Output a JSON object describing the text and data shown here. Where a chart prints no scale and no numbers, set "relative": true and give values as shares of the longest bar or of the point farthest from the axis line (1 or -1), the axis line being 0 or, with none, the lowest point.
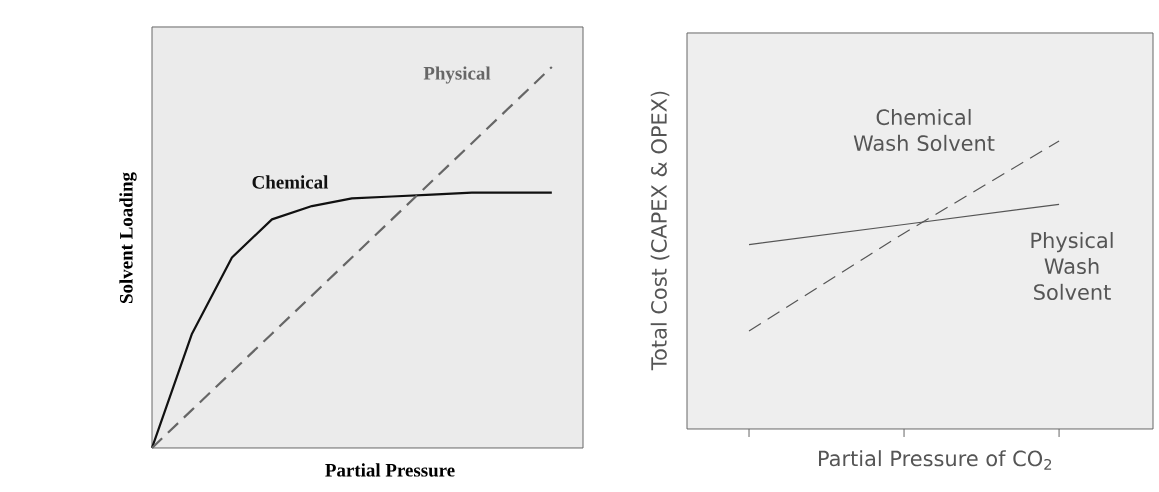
{
  "chart_data": [
    {
      "type": "line",
      "relative": true,
      "xlabel": "Partial Pressure",
      "ylabel": "Solvent Loading",
      "categories": [
        null,
        null,
        null,
        null,
        null,
        null,
        null,
        null,
        null,
        null,
        null
      ],
      "series": [
        {
          "name": "Chemical",
          "color": "#111111",
          "line_style": "solid",
          "values": [
            0,
            0.3,
            0.5,
            0.6,
            0.635,
            0.655,
            0.66,
            0.665,
            0.67,
            0.67,
            0.67
          ]
        },
        {
          "name": "Physical",
          "color": "#666666",
          "line_style": "dashed",
          "values": [
            0,
            0.1,
            0.2,
            0.3,
            0.4,
            0.5,
            0.6,
            0.7,
            0.8,
            0.9,
            1
          ]
        }
      ]
    },
    {
      "type": "line",
      "relative": true,
      "xlabel": "Partial Pressure of CO$_{2}$",
      "ylabel": "Total Cost (CAPEX & OPEX)",
      "categories": [
        null,
        null,
        null
      ],
      "series": [
        {
          "name": "Chemical Wash Solvent",
          "color": "#555555",
          "line_style": "dashed",
          "values": [
            0.34,
            0.68,
            1
          ]
        },
        {
          "name": "Physical Wash Solvent",
          "color": "#555555",
          "line_style": "solid",
          "values": [
            0.64,
            0.71,
            0.78
          ]
        }
      ]
    }
  ]
}
